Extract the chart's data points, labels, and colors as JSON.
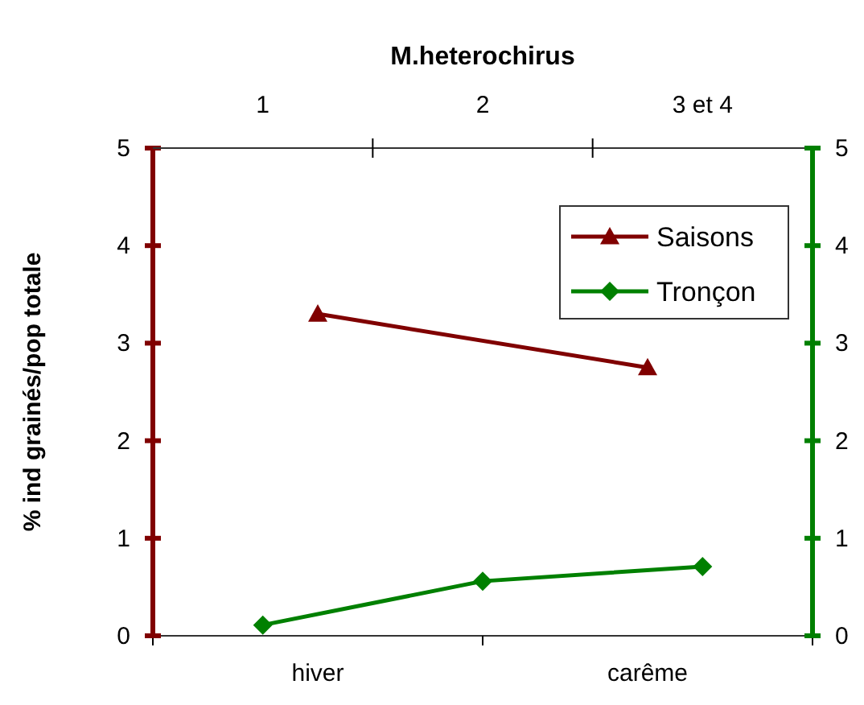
{
  "chart_data": [
    {
      "type": "line",
      "title": "M.heterochirus",
      "ylabel": "% ind grainés/pop totale",
      "categories": [
        "hiver",
        "carême"
      ],
      "series": [
        {
          "name": "Saisons",
          "color": "#800000",
          "values": [
            3.3,
            2.75
          ],
          "marker": "triangle"
        }
      ],
      "ylim": [
        0,
        5
      ],
      "yticks": [
        0,
        1,
        2,
        3,
        4,
        5
      ],
      "grid": false,
      "legend": "top right"
    },
    {
      "type": "line",
      "categories": [
        "1",
        "2",
        "3 et 4"
      ],
      "series": [
        {
          "name": "Tronçon",
          "color": "#008000",
          "values": [
            0.11,
            0.56,
            0.71
          ],
          "marker": "diamond",
          "axis": "y2"
        }
      ],
      "y2lim": [
        0,
        5
      ],
      "y2ticks": [
        0,
        1,
        2,
        3,
        4,
        5
      ],
      "grid": false,
      "legend": "top right"
    }
  ]
}
